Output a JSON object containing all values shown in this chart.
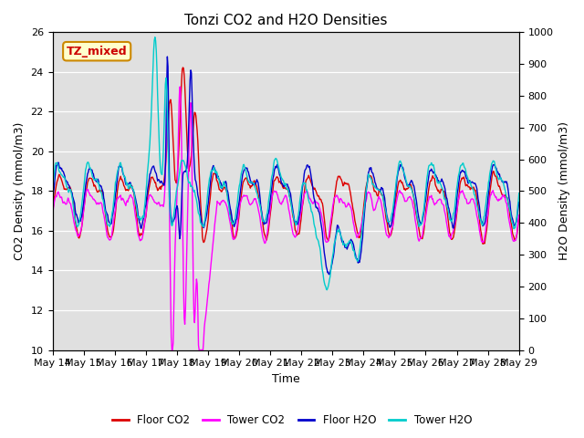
{
  "title": "Tonzi CO2 and H2O Densities",
  "xlabel": "Time",
  "ylabel_left": "CO2 Density (mmol/m3)",
  "ylabel_right": "H2O Density (mmol/m3)",
  "ylim_left": [
    10,
    26
  ],
  "ylim_right": [
    0,
    1000
  ],
  "annotation_text": "TZ_mixed",
  "annotation_color": "#cc0000",
  "annotation_bg": "#ffffcc",
  "annotation_border": "#cc8800",
  "colors": {
    "floor_co2": "#dd0000",
    "tower_co2": "#ff00ff",
    "floor_h2o": "#0000cc",
    "tower_h2o": "#00cccc"
  },
  "legend_labels": [
    "Floor CO2",
    "Tower CO2",
    "Floor H2O",
    "Tower H2O"
  ],
  "bg_color": "#e0e0e0",
  "n_points": 720,
  "xtick_labels": [
    "May 14",
    "May 15",
    "May 16",
    "May 17",
    "May 18",
    "May 19",
    "May 20",
    "May 21",
    "May 22",
    "May 23",
    "May 24",
    "May 25",
    "May 26",
    "May 27",
    "May 28",
    "May 29"
  ],
  "yticks_left": [
    10,
    12,
    14,
    16,
    18,
    20,
    22,
    24,
    26
  ],
  "yticks_right": [
    0,
    100,
    200,
    300,
    400,
    500,
    600,
    700,
    800,
    900,
    1000
  ]
}
